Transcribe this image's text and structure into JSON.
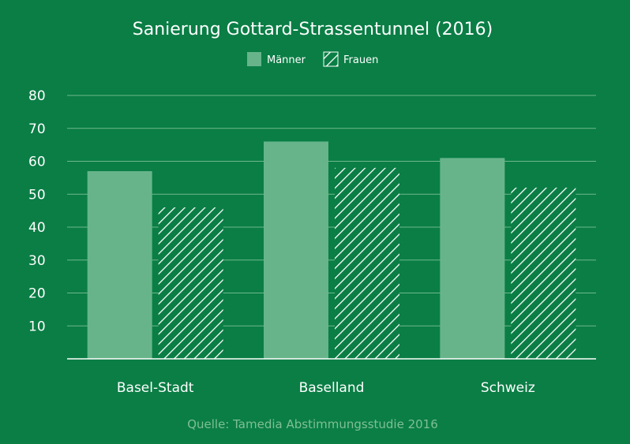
{
  "chart_data": {
    "type": "bar",
    "title": "Sanierung Gottard-Strassentunnel (2016)",
    "categories": [
      "Basel-Stadt",
      "Baselland",
      "Schweiz"
    ],
    "series": [
      {
        "name": "Männer",
        "values": [
          57,
          66,
          61
        ]
      },
      {
        "name": "Frauen",
        "values": [
          46,
          58,
          52
        ]
      }
    ],
    "ylim": [
      0,
      80
    ],
    "yticks": [
      10,
      20,
      30,
      40,
      50,
      60,
      70,
      80
    ],
    "grid": true,
    "legend_position": "top-center",
    "source": "Quelle: Tamedia Abstimmungsstudie 2016",
    "colors": {
      "background": "#0a7e45",
      "maenner_bar": "#67b48b",
      "frauen_hatch": "#ffffff",
      "grid": "#6fb88c",
      "source_text": "#7fbf95"
    }
  }
}
